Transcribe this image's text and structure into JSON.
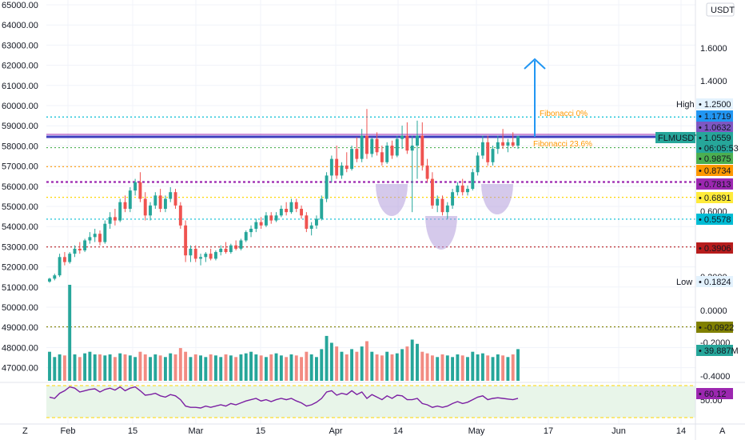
{
  "colors": {
    "up": "#26a69a",
    "down": "#ef5350",
    "up_volume": "#26a69a",
    "down_volume": "#f28b82",
    "grid": "#f0f3fa",
    "fib_blue": "#2196f3",
    "fib_orange": "#ff9800",
    "fib_green": "#4caf50",
    "fib_purple": "#9c27b0",
    "fib_yellow": "#ffd600",
    "fib_teal": "#00bcd4",
    "fib_red": "#b71c1c",
    "hs_fill": "#b39ddb",
    "neckline": "#3f3fbf",
    "arrow": "#2196f3",
    "rsi_line": "#7b1fa2",
    "rsi_band": "#e8f5e9",
    "rsi_band_border": "#c8e6c9"
  },
  "left_axis": {
    "labels": [
      "65000.00",
      "64000.00",
      "63000.00",
      "62000.00",
      "61000.00",
      "60000.00",
      "59000.00",
      "58000.00",
      "57000.00",
      "56000.00",
      "55000.00",
      "54000.00",
      "53000.00",
      "52000.00",
      "51000.00",
      "50000.00",
      "49000.00",
      "48000.00",
      "47000.00"
    ]
  },
  "right_axis": {
    "currency": "USDT",
    "tick_labels": [
      "1.6000",
      "1.4000",
      "0.6000",
      "0.2000",
      "0.0000",
      "-0.2000",
      "-0.4000",
      "50.00"
    ],
    "badges": [
      {
        "label": "High",
        "value": "1.2500"
      },
      {
        "value": "1.1719"
      },
      {
        "value": "1.0632"
      },
      {
        "value": "FLMUSDT"
      },
      {
        "value": "1.0559"
      },
      {
        "value": "06:05:53"
      },
      {
        "value": "0.9875"
      },
      {
        "value": "0.8734"
      },
      {
        "value": "0.7813"
      },
      {
        "value": "0.6891"
      },
      {
        "value": "0.5578"
      },
      {
        "value": "0.3906"
      },
      {
        "label": "Low",
        "value": "0.1824"
      },
      {
        "value": "-0.0922"
      },
      {
        "value": "39.887M"
      },
      {
        "value": "60.12"
      }
    ]
  },
  "time_axis": {
    "labels": [
      "Feb",
      "15",
      "Mar",
      "15",
      "Apr",
      "14",
      "May",
      "17",
      "Jun",
      "14"
    ]
  },
  "annotations": {
    "fib0": "Fibonacci 0%",
    "fib236": "Fibonacci 23.6%"
  },
  "corner": {
    "left": "Z",
    "right": "A"
  },
  "chart_data": {
    "type": "candlestick",
    "symbol": "FLMUSDT",
    "currency": "USDT",
    "fib_levels": [
      1.25,
      1.1719,
      1.0632,
      0.9875,
      0.8734,
      0.7813,
      0.6891,
      0.5578,
      0.3906,
      0.1824,
      -0.0922
    ],
    "last_price": 1.0559,
    "volume_last": "39.887M",
    "rsi_last": 60.12,
    "candles": [
      [
        0.1824,
        0.205,
        0.175,
        0.2
      ],
      [
        0.2,
        0.23,
        0.19,
        0.22
      ],
      [
        0.22,
        0.35,
        0.21,
        0.33
      ],
      [
        0.33,
        0.36,
        0.28,
        0.3
      ],
      [
        0.3,
        0.36,
        0.29,
        0.35
      ],
      [
        0.35,
        0.4,
        0.33,
        0.38
      ],
      [
        0.38,
        0.42,
        0.35,
        0.37
      ],
      [
        0.37,
        0.44,
        0.36,
        0.43
      ],
      [
        0.43,
        0.48,
        0.41,
        0.45
      ],
      [
        0.45,
        0.5,
        0.42,
        0.47
      ],
      [
        0.47,
        0.49,
        0.4,
        0.42
      ],
      [
        0.42,
        0.55,
        0.41,
        0.53
      ],
      [
        0.53,
        0.6,
        0.5,
        0.57
      ],
      [
        0.57,
        0.62,
        0.52,
        0.55
      ],
      [
        0.55,
        0.68,
        0.54,
        0.66
      ],
      [
        0.66,
        0.7,
        0.6,
        0.62
      ],
      [
        0.62,
        0.75,
        0.6,
        0.73
      ],
      [
        0.73,
        0.8,
        0.7,
        0.78
      ],
      [
        0.78,
        0.84,
        0.66,
        0.68
      ],
      [
        0.68,
        0.72,
        0.55,
        0.58
      ],
      [
        0.58,
        0.66,
        0.55,
        0.64
      ],
      [
        0.64,
        0.72,
        0.62,
        0.7
      ],
      [
        0.7,
        0.74,
        0.6,
        0.62
      ],
      [
        0.62,
        0.7,
        0.6,
        0.68
      ],
      [
        0.68,
        0.75,
        0.66,
        0.72
      ],
      [
        0.72,
        0.74,
        0.62,
        0.64
      ],
      [
        0.64,
        0.66,
        0.5,
        0.52
      ],
      [
        0.52,
        0.55,
        0.3,
        0.34
      ],
      [
        0.34,
        0.4,
        0.3,
        0.38
      ],
      [
        0.38,
        0.4,
        0.3,
        0.32
      ],
      [
        0.32,
        0.35,
        0.28,
        0.33
      ],
      [
        0.33,
        0.36,
        0.3,
        0.35
      ],
      [
        0.35,
        0.38,
        0.31,
        0.32
      ],
      [
        0.32,
        0.37,
        0.31,
        0.36
      ],
      [
        0.36,
        0.4,
        0.34,
        0.38
      ],
      [
        0.38,
        0.42,
        0.35,
        0.36
      ],
      [
        0.36,
        0.41,
        0.35,
        0.4
      ],
      [
        0.4,
        0.43,
        0.37,
        0.38
      ],
      [
        0.38,
        0.44,
        0.37,
        0.43
      ],
      [
        0.43,
        0.49,
        0.42,
        0.48
      ],
      [
        0.48,
        0.52,
        0.45,
        0.5
      ],
      [
        0.5,
        0.56,
        0.48,
        0.54
      ],
      [
        0.54,
        0.57,
        0.5,
        0.52
      ],
      [
        0.52,
        0.6,
        0.51,
        0.58
      ],
      [
        0.58,
        0.6,
        0.53,
        0.55
      ],
      [
        0.55,
        0.6,
        0.54,
        0.58
      ],
      [
        0.58,
        0.64,
        0.57,
        0.62
      ],
      [
        0.62,
        0.66,
        0.58,
        0.6
      ],
      [
        0.6,
        0.68,
        0.59,
        0.66
      ],
      [
        0.66,
        0.68,
        0.6,
        0.62
      ],
      [
        0.62,
        0.64,
        0.56,
        0.58
      ],
      [
        0.58,
        0.6,
        0.48,
        0.5
      ],
      [
        0.5,
        0.54,
        0.46,
        0.52
      ],
      [
        0.52,
        0.58,
        0.5,
        0.56
      ],
      [
        0.56,
        0.7,
        0.55,
        0.68
      ],
      [
        0.68,
        0.84,
        0.66,
        0.82
      ],
      [
        0.82,
        0.94,
        0.78,
        0.92
      ],
      [
        0.92,
        1.0,
        0.8,
        0.82
      ],
      [
        0.82,
        0.9,
        0.8,
        0.88
      ],
      [
        0.88,
        0.96,
        0.84,
        0.86
      ],
      [
        0.86,
        1.0,
        0.85,
        0.98
      ],
      [
        0.98,
        1.05,
        0.9,
        0.92
      ],
      [
        0.92,
        1.1,
        0.9,
        1.06
      ],
      [
        1.06,
        1.22,
        0.92,
        0.95
      ],
      [
        0.95,
        1.05,
        0.93,
        1.04
      ],
      [
        1.04,
        1.08,
        0.94,
        0.96
      ],
      [
        0.96,
        1.0,
        0.88,
        0.9
      ],
      [
        0.9,
        1.02,
        0.89,
        1.0
      ],
      [
        1.0,
        1.03,
        0.92,
        0.94
      ],
      [
        0.94,
        1.06,
        0.93,
        1.04
      ],
      [
        1.04,
        1.12,
        0.98,
        1.06
      ],
      [
        1.06,
        1.14,
        0.95,
        0.97
      ],
      [
        0.97,
        1.06,
        0.6,
        1.0
      ],
      [
        1.0,
        1.15,
        0.8,
        1.06
      ],
      [
        1.06,
        1.14,
        0.85,
        0.88
      ],
      [
        0.88,
        0.92,
        0.78,
        0.8
      ],
      [
        0.8,
        0.84,
        0.62,
        0.64
      ],
      [
        0.64,
        0.7,
        0.6,
        0.68
      ],
      [
        0.68,
        0.7,
        0.58,
        0.6
      ],
      [
        0.6,
        0.66,
        0.56,
        0.64
      ],
      [
        0.64,
        0.74,
        0.62,
        0.72
      ],
      [
        0.72,
        0.78,
        0.7,
        0.76
      ],
      [
        0.76,
        0.8,
        0.7,
        0.72
      ],
      [
        0.72,
        0.76,
        0.7,
        0.74
      ],
      [
        0.74,
        0.86,
        0.73,
        0.84
      ],
      [
        0.84,
        0.96,
        0.82,
        0.94
      ],
      [
        0.94,
        1.06,
        0.92,
        1.02
      ],
      [
        1.02,
        1.06,
        0.88,
        0.9
      ],
      [
        0.9,
        1.0,
        0.88,
        0.98
      ],
      [
        0.98,
        1.06,
        0.95,
        1.02
      ],
      [
        1.02,
        1.1,
        0.98,
        1.0
      ],
      [
        1.0,
        1.04,
        0.96,
        1.02
      ],
      [
        1.02,
        1.08,
        0.99,
        1.0
      ],
      [
        1.0,
        1.06,
        0.98,
        1.0559
      ]
    ],
    "volumes": [
      0.55,
      0.45,
      0.5,
      0.48,
      1.0,
      0.5,
      0.45,
      0.52,
      0.55,
      0.5,
      0.5,
      0.48,
      0.5,
      0.45,
      0.52,
      0.5,
      0.48,
      0.45,
      0.55,
      0.5,
      0.45,
      0.5,
      0.48,
      0.45,
      0.52,
      0.5,
      0.62,
      0.55,
      0.45,
      0.5,
      0.48,
      0.45,
      0.5,
      0.48,
      0.45,
      0.5,
      0.48,
      0.45,
      0.5,
      0.52,
      0.55,
      0.5,
      0.48,
      0.45,
      0.5,
      0.52,
      0.48,
      0.45,
      0.5,
      0.48,
      0.45,
      0.55,
      0.5,
      0.45,
      0.6,
      0.85,
      0.72,
      0.65,
      0.55,
      0.5,
      0.6,
      0.55,
      0.65,
      0.75,
      0.55,
      0.5,
      0.48,
      0.55,
      0.5,
      0.52,
      0.6,
      0.65,
      0.78,
      0.7,
      0.55,
      0.52,
      0.48,
      0.45,
      0.5,
      0.48,
      0.45,
      0.5,
      0.48,
      0.45,
      0.55,
      0.5,
      0.52,
      0.48,
      0.45,
      0.5,
      0.48,
      0.45,
      0.5,
      0.6
    ],
    "rsi": [
      62,
      60,
      68,
      72,
      78,
      76,
      70,
      72,
      74,
      75,
      70,
      74,
      76,
      73,
      78,
      72,
      76,
      78,
      72,
      65,
      66,
      68,
      64,
      62,
      66,
      64,
      58,
      48,
      46,
      46,
      45,
      48,
      46,
      48,
      50,
      48,
      52,
      50,
      53,
      56,
      58,
      60,
      56,
      58,
      55,
      58,
      60,
      58,
      60,
      56,
      53,
      48,
      50,
      54,
      60,
      70,
      72,
      65,
      68,
      66,
      72,
      66,
      70,
      60,
      66,
      62,
      58,
      64,
      60,
      65,
      64,
      58,
      58,
      60,
      52,
      50,
      46,
      48,
      46,
      48,
      52,
      55,
      52,
      54,
      58,
      62,
      64,
      58,
      60,
      61,
      60,
      59,
      58,
      60.12
    ]
  }
}
